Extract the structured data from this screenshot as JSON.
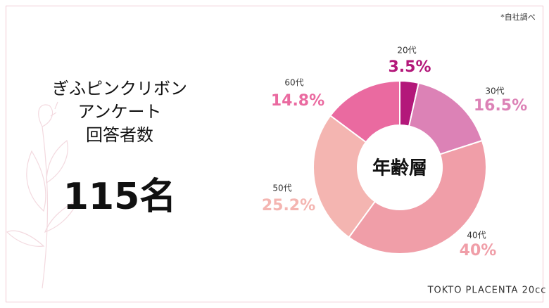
{
  "note": "*自社調べ",
  "panel": {
    "lines": [
      "ぎふピンクリボン",
      "アンケート",
      "回答者数"
    ],
    "count": "115名"
  },
  "brand": "TOKTO PLACENTA 20cc",
  "chart_data": {
    "type": "donut",
    "center_label": "年齢層",
    "categories": [
      "20代",
      "30代",
      "40代",
      "50代",
      "60代"
    ],
    "values": [
      3.5,
      16.5,
      40,
      25.2,
      14.8
    ],
    "value_labels": [
      "3.5%",
      "16.5%",
      "40%",
      "25.2%",
      "14.8%"
    ],
    "colors": [
      "#b3187a",
      "#dc82b6",
      "#f09ea8",
      "#f4b5b1",
      "#ea6aa0"
    ]
  }
}
